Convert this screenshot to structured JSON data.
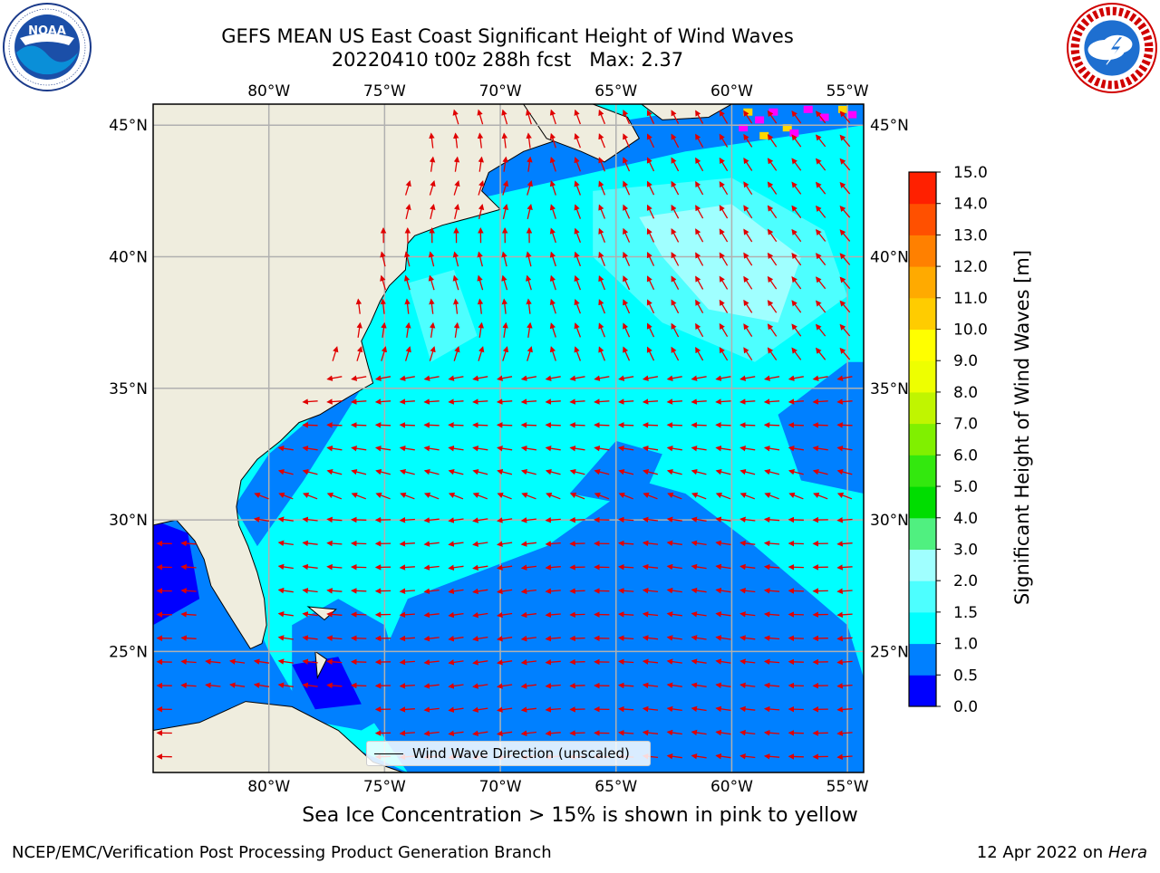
{
  "header": {
    "title_line1": "GEFS MEAN US East Coast Significant Height of Wind Waves",
    "title_line2": "20220410 t00z 288h fcst   Max: 2.37"
  },
  "logos": {
    "left": "noaa-logo",
    "right": "national-weather-service-logo"
  },
  "map": {
    "lon_labels": [
      "80°W",
      "75°W",
      "70°W",
      "65°W",
      "60°W",
      "55°W"
    ],
    "lat_labels": [
      "45°N",
      "40°N",
      "35°N",
      "30°N",
      "25°N"
    ],
    "lon_values": [
      -80,
      -75,
      -70,
      -65,
      -60,
      -55
    ],
    "lat_values": [
      45,
      40,
      35,
      30,
      25
    ],
    "lon_range": [
      -85,
      -54.3
    ],
    "lat_range": [
      20.4,
      45.8
    ],
    "gridlines": true,
    "colors": {
      "land": "#efedde",
      "grid": "#b0b0b0",
      "arrow": "#e00000",
      "sea_ice_pink": "#ff00ff",
      "sea_ice_yellow": "#ffd700"
    }
  },
  "legend": {
    "label": "Wind Wave Direction (unscaled)"
  },
  "colorbar": {
    "label": "Significant Height of Wind Waves [m]",
    "ticks": [
      "0.0",
      "0.5",
      "1.0",
      "1.5",
      "2.0",
      "3.0",
      "4.0",
      "5.0",
      "6.0",
      "7.0",
      "8.0",
      "9.0",
      "10.0",
      "11.0",
      "12.0",
      "13.0",
      "14.0",
      "15.0"
    ],
    "colors": [
      "#0000ff",
      "#0080ff",
      "#00ffff",
      "#4dffff",
      "#a0ffff",
      "#50f080",
      "#00dd00",
      "#33e80e",
      "#80f000",
      "#c0f500",
      "#eeff00",
      "#ffff00",
      "#ffcc00",
      "#ffaa00",
      "#ff8000",
      "#ff5000",
      "#ff2000"
    ]
  },
  "caption": "Sea Ice Concentration > 15% is shown in pink to yellow",
  "footer": {
    "left": "NCEP/EMC/Verification Post Processing Product Generation Branch",
    "date": "12 Apr 2022 on",
    "machine": "Hera"
  }
}
